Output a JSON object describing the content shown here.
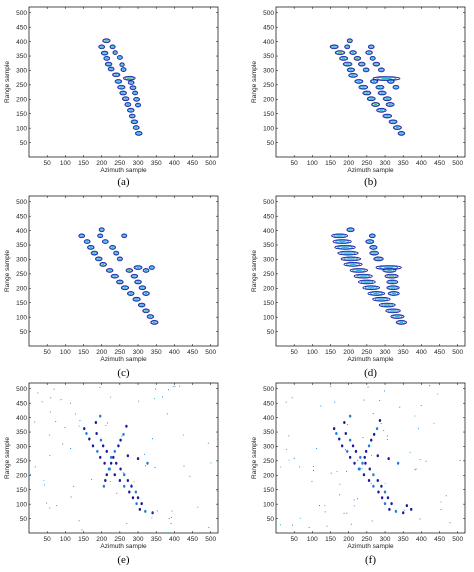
{
  "panel_labels": [
    "(a)",
    "(b)",
    "(c)",
    "(d)",
    "(e)",
    "(f)"
  ],
  "chart_data": [
    {
      "type": "heatmap",
      "panel": "(a)",
      "xlabel": "Azimuth sample",
      "ylabel": "Range sample",
      "xlim": [
        0,
        520
      ],
      "ylim": [
        0,
        520
      ],
      "xticks": [
        50,
        100,
        150,
        200,
        250,
        300,
        350,
        400,
        450,
        500
      ],
      "yticks": [
        50,
        100,
        150,
        200,
        250,
        300,
        350,
        400,
        450,
        500
      ],
      "colormap": [
        "#1a1aa0",
        "#1f7fd6",
        "#22b8c9",
        "#40c060"
      ],
      "targets": [
        {
          "x": 213,
          "y": 403,
          "len": 20
        },
        {
          "x": 200,
          "y": 382,
          "len": 16
        },
        {
          "x": 230,
          "y": 382,
          "len": 14
        },
        {
          "x": 208,
          "y": 360,
          "len": 18
        },
        {
          "x": 237,
          "y": 362,
          "len": 12
        },
        {
          "x": 214,
          "y": 342,
          "len": 16
        },
        {
          "x": 250,
          "y": 345,
          "len": 14
        },
        {
          "x": 219,
          "y": 322,
          "len": 18
        },
        {
          "x": 256,
          "y": 320,
          "len": 12
        },
        {
          "x": 226,
          "y": 305,
          "len": 16
        },
        {
          "x": 260,
          "y": 303,
          "len": 14
        },
        {
          "x": 240,
          "y": 285,
          "len": 20
        },
        {
          "x": 276,
          "y": 273,
          "len": 32
        },
        {
          "x": 246,
          "y": 262,
          "len": 18
        },
        {
          "x": 281,
          "y": 258,
          "len": 16
        },
        {
          "x": 254,
          "y": 242,
          "len": 20
        },
        {
          "x": 286,
          "y": 240,
          "len": 16
        },
        {
          "x": 259,
          "y": 222,
          "len": 18
        },
        {
          "x": 292,
          "y": 222,
          "len": 14
        },
        {
          "x": 266,
          "y": 202,
          "len": 18
        },
        {
          "x": 296,
          "y": 200,
          "len": 16
        },
        {
          "x": 272,
          "y": 182,
          "len": 16
        },
        {
          "x": 300,
          "y": 180,
          "len": 14
        },
        {
          "x": 280,
          "y": 162,
          "len": 18
        },
        {
          "x": 284,
          "y": 142,
          "len": 16
        },
        {
          "x": 290,
          "y": 122,
          "len": 18
        },
        {
          "x": 295,
          "y": 102,
          "len": 16
        },
        {
          "x": 302,
          "y": 82,
          "len": 18
        }
      ]
    },
    {
      "type": "heatmap",
      "panel": "(b)",
      "xlabel": "Azimuth sample",
      "ylabel": "Range sample",
      "xlim": [
        0,
        520
      ],
      "ylim": [
        0,
        520
      ],
      "xticks": [
        50,
        100,
        150,
        200,
        250,
        300,
        350,
        400,
        450,
        500
      ],
      "yticks": [
        50,
        100,
        150,
        200,
        250,
        300,
        350,
        400,
        450,
        500
      ],
      "colormap": [
        "#1a1aa0",
        "#1f7fd6",
        "#22b8c9",
        "#40c060"
      ],
      "targets": [
        {
          "x": 203,
          "y": 403,
          "len": 14
        },
        {
          "x": 160,
          "y": 382,
          "len": 22
        },
        {
          "x": 196,
          "y": 382,
          "len": 14
        },
        {
          "x": 262,
          "y": 382,
          "len": 16
        },
        {
          "x": 176,
          "y": 362,
          "len": 26
        },
        {
          "x": 212,
          "y": 362,
          "len": 18
        },
        {
          "x": 256,
          "y": 362,
          "len": 18
        },
        {
          "x": 186,
          "y": 342,
          "len": 22
        },
        {
          "x": 224,
          "y": 342,
          "len": 18
        },
        {
          "x": 266,
          "y": 342,
          "len": 14
        },
        {
          "x": 197,
          "y": 322,
          "len": 24
        },
        {
          "x": 236,
          "y": 322,
          "len": 18
        },
        {
          "x": 276,
          "y": 322,
          "len": 18
        },
        {
          "x": 206,
          "y": 302,
          "len": 20
        },
        {
          "x": 248,
          "y": 302,
          "len": 16
        },
        {
          "x": 290,
          "y": 302,
          "len": 16
        },
        {
          "x": 212,
          "y": 283,
          "len": 24
        },
        {
          "x": 304,
          "y": 272,
          "len": 74
        },
        {
          "x": 228,
          "y": 262,
          "len": 22
        },
        {
          "x": 270,
          "y": 262,
          "len": 20
        },
        {
          "x": 316,
          "y": 262,
          "len": 18
        },
        {
          "x": 240,
          "y": 242,
          "len": 24
        },
        {
          "x": 286,
          "y": 242,
          "len": 22
        },
        {
          "x": 330,
          "y": 242,
          "len": 16
        },
        {
          "x": 250,
          "y": 222,
          "len": 22
        },
        {
          "x": 292,
          "y": 222,
          "len": 22
        },
        {
          "x": 262,
          "y": 202,
          "len": 22
        },
        {
          "x": 306,
          "y": 202,
          "len": 22
        },
        {
          "x": 274,
          "y": 182,
          "len": 22
        },
        {
          "x": 314,
          "y": 182,
          "len": 22
        },
        {
          "x": 290,
          "y": 162,
          "len": 26
        },
        {
          "x": 306,
          "y": 142,
          "len": 24
        },
        {
          "x": 322,
          "y": 122,
          "len": 22
        },
        {
          "x": 334,
          "y": 102,
          "len": 22
        },
        {
          "x": 345,
          "y": 82,
          "len": 18
        }
      ]
    },
    {
      "type": "heatmap",
      "panel": "(c)",
      "xlabel": "Azimuth sample",
      "ylabel": "Range sample",
      "xlim": [
        0,
        520
      ],
      "ylim": [
        0,
        520
      ],
      "xticks": [
        50,
        100,
        150,
        200,
        250,
        300,
        350,
        400,
        450,
        500
      ],
      "yticks": [
        50,
        100,
        150,
        200,
        250,
        300,
        350,
        400,
        450,
        500
      ],
      "colormap": [
        "#1a1aa0",
        "#1f7fd6",
        "#22b8c9",
        "#40c060"
      ],
      "targets": [
        {
          "x": 200,
          "y": 403,
          "len": 14
        },
        {
          "x": 145,
          "y": 382,
          "len": 16
        },
        {
          "x": 196,
          "y": 382,
          "len": 14
        },
        {
          "x": 262,
          "y": 382,
          "len": 14
        },
        {
          "x": 160,
          "y": 362,
          "len": 16
        },
        {
          "x": 210,
          "y": 362,
          "len": 16
        },
        {
          "x": 170,
          "y": 342,
          "len": 18
        },
        {
          "x": 230,
          "y": 342,
          "len": 16
        },
        {
          "x": 180,
          "y": 322,
          "len": 18
        },
        {
          "x": 240,
          "y": 322,
          "len": 14
        },
        {
          "x": 192,
          "y": 302,
          "len": 18
        },
        {
          "x": 250,
          "y": 302,
          "len": 14
        },
        {
          "x": 204,
          "y": 283,
          "len": 18
        },
        {
          "x": 300,
          "y": 272,
          "len": 22
        },
        {
          "x": 338,
          "y": 272,
          "len": 14
        },
        {
          "x": 222,
          "y": 262,
          "len": 18
        },
        {
          "x": 276,
          "y": 262,
          "len": 18
        },
        {
          "x": 322,
          "y": 262,
          "len": 16
        },
        {
          "x": 236,
          "y": 242,
          "len": 20
        },
        {
          "x": 290,
          "y": 242,
          "len": 18
        },
        {
          "x": 250,
          "y": 222,
          "len": 18
        },
        {
          "x": 300,
          "y": 222,
          "len": 18
        },
        {
          "x": 264,
          "y": 202,
          "len": 20
        },
        {
          "x": 312,
          "y": 202,
          "len": 18
        },
        {
          "x": 280,
          "y": 182,
          "len": 18
        },
        {
          "x": 322,
          "y": 182,
          "len": 18
        },
        {
          "x": 296,
          "y": 162,
          "len": 20
        },
        {
          "x": 310,
          "y": 142,
          "len": 18
        },
        {
          "x": 322,
          "y": 122,
          "len": 18
        },
        {
          "x": 334,
          "y": 102,
          "len": 18
        },
        {
          "x": 345,
          "y": 82,
          "len": 20
        }
      ]
    },
    {
      "type": "heatmap",
      "panel": "(d)",
      "xlabel": "Azimuth sample",
      "ylabel": "Range sample",
      "xlim": [
        0,
        520
      ],
      "ylim": [
        0,
        520
      ],
      "xticks": [
        50,
        100,
        150,
        200,
        250,
        300,
        350,
        400,
        450,
        500
      ],
      "yticks": [
        50,
        100,
        150,
        200,
        250,
        300,
        350,
        400,
        450,
        500
      ],
      "colormap": [
        "#1a1aa0",
        "#1f7fd6",
        "#22b8c9",
        "#40c060"
      ],
      "targets": [
        {
          "x": 205,
          "y": 403,
          "len": 20
        },
        {
          "x": 175,
          "y": 382,
          "len": 44
        },
        {
          "x": 265,
          "y": 382,
          "len": 16
        },
        {
          "x": 182,
          "y": 362,
          "len": 50
        },
        {
          "x": 258,
          "y": 362,
          "len": 22
        },
        {
          "x": 190,
          "y": 342,
          "len": 56
        },
        {
          "x": 268,
          "y": 342,
          "len": 20
        },
        {
          "x": 198,
          "y": 322,
          "len": 56
        },
        {
          "x": 270,
          "y": 322,
          "len": 24
        },
        {
          "x": 206,
          "y": 302,
          "len": 54
        },
        {
          "x": 282,
          "y": 302,
          "len": 26
        },
        {
          "x": 212,
          "y": 283,
          "len": 50
        },
        {
          "x": 310,
          "y": 272,
          "len": 70
        },
        {
          "x": 228,
          "y": 262,
          "len": 48
        },
        {
          "x": 312,
          "y": 262,
          "len": 36
        },
        {
          "x": 240,
          "y": 242,
          "len": 50
        },
        {
          "x": 318,
          "y": 242,
          "len": 36
        },
        {
          "x": 250,
          "y": 222,
          "len": 46
        },
        {
          "x": 320,
          "y": 222,
          "len": 30
        },
        {
          "x": 262,
          "y": 202,
          "len": 46
        },
        {
          "x": 322,
          "y": 202,
          "len": 34
        },
        {
          "x": 276,
          "y": 182,
          "len": 46
        },
        {
          "x": 324,
          "y": 182,
          "len": 30
        },
        {
          "x": 290,
          "y": 162,
          "len": 48
        },
        {
          "x": 306,
          "y": 142,
          "len": 44
        },
        {
          "x": 322,
          "y": 122,
          "len": 40
        },
        {
          "x": 334,
          "y": 102,
          "len": 36
        },
        {
          "x": 345,
          "y": 82,
          "len": 28
        }
      ]
    },
    {
      "type": "scatter",
      "panel": "(e)",
      "xlabel": "Azimuth sample",
      "ylabel": "Range sample",
      "xlim": [
        0,
        520
      ],
      "ylim": [
        0,
        520
      ],
      "xticks": [
        50,
        100,
        150,
        200,
        250,
        300,
        350,
        400,
        450,
        500
      ],
      "yticks": [
        50,
        100,
        150,
        200,
        250,
        300,
        350,
        400,
        450,
        500
      ],
      "colormap": [
        "#1a1aa0",
        "#1f7fd6",
        "#22b8c9",
        "#40c060"
      ],
      "noise_count": 70,
      "points": [
        [
          196,
          405
        ],
        [
          184,
          383
        ],
        [
          152,
          362
        ],
        [
          158,
          345
        ],
        [
          186,
          345
        ],
        [
          166,
          326
        ],
        [
          198,
          322
        ],
        [
          176,
          302
        ],
        [
          204,
          302
        ],
        [
          188,
          283
        ],
        [
          214,
          283
        ],
        [
          196,
          262
        ],
        [
          226,
          262
        ],
        [
          208,
          242
        ],
        [
          240,
          242
        ],
        [
          222,
          222
        ],
        [
          252,
          222
        ],
        [
          236,
          202
        ],
        [
          262,
          202
        ],
        [
          250,
          182
        ],
        [
          272,
          182
        ],
        [
          262,
          162
        ],
        [
          282,
          162
        ],
        [
          276,
          142
        ],
        [
          294,
          142
        ],
        [
          286,
          122
        ],
        [
          300,
          122
        ],
        [
          296,
          102
        ],
        [
          310,
          102
        ],
        [
          305,
          82
        ],
        [
          320,
          75
        ],
        [
          340,
          70
        ],
        [
          268,
          370
        ],
        [
          260,
          342
        ],
        [
          252,
          322
        ],
        [
          246,
          302
        ],
        [
          236,
          283
        ],
        [
          232,
          262
        ],
        [
          226,
          242
        ],
        [
          220,
          222
        ],
        [
          272,
          268
        ],
        [
          300,
          258
        ],
        [
          326,
          242
        ],
        [
          214,
          202
        ],
        [
          210,
          182
        ],
        [
          206,
          162
        ]
      ]
    },
    {
      "type": "scatter",
      "panel": "(f)",
      "xlabel": "Azimuth sample",
      "ylabel": "Range sample",
      "xlim": [
        0,
        520
      ],
      "ylim": [
        0,
        520
      ],
      "xticks": [
        50,
        100,
        150,
        200,
        250,
        300,
        350,
        400,
        450,
        500
      ],
      "yticks": [
        50,
        100,
        150,
        200,
        250,
        300,
        350,
        400,
        450,
        500
      ],
      "colormap": [
        "#1a1aa0",
        "#1f7fd6",
        "#22b8c9",
        "#40c060"
      ],
      "noise_count": 75,
      "points": [
        [
          204,
          405
        ],
        [
          188,
          383
        ],
        [
          160,
          362
        ],
        [
          166,
          345
        ],
        [
          192,
          345
        ],
        [
          174,
          326
        ],
        [
          204,
          322
        ],
        [
          182,
          302
        ],
        [
          212,
          302
        ],
        [
          196,
          283
        ],
        [
          220,
          283
        ],
        [
          204,
          262
        ],
        [
          232,
          262
        ],
        [
          216,
          242
        ],
        [
          246,
          242
        ],
        [
          230,
          222
        ],
        [
          258,
          222
        ],
        [
          242,
          202
        ],
        [
          268,
          202
        ],
        [
          256,
          182
        ],
        [
          280,
          182
        ],
        [
          268,
          162
        ],
        [
          290,
          162
        ],
        [
          282,
          142
        ],
        [
          300,
          142
        ],
        [
          292,
          122
        ],
        [
          308,
          122
        ],
        [
          300,
          102
        ],
        [
          318,
          102
        ],
        [
          312,
          82
        ],
        [
          330,
          75
        ],
        [
          350,
          70
        ],
        [
          286,
          390
        ],
        [
          278,
          362
        ],
        [
          270,
          342
        ],
        [
          262,
          322
        ],
        [
          256,
          302
        ],
        [
          248,
          283
        ],
        [
          244,
          262
        ],
        [
          238,
          242
        ],
        [
          280,
          268
        ],
        [
          310,
          258
        ],
        [
          336,
          242
        ],
        [
          360,
          95
        ],
        [
          372,
          82
        ],
        [
          228,
          222
        ]
      ]
    }
  ]
}
